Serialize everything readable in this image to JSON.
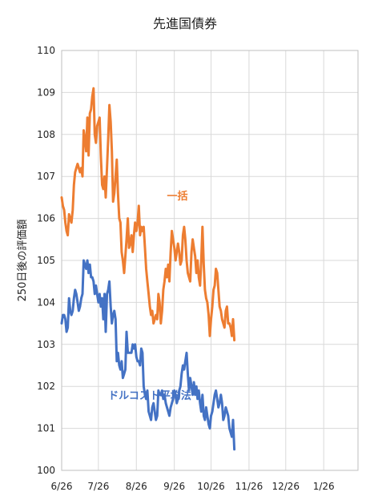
{
  "chart_data": {
    "type": "line",
    "title": "先進国債券",
    "ylabel": "250日後の評価額",
    "ylim": [
      100,
      110
    ],
    "y_ticks": [
      100,
      101,
      102,
      103,
      104,
      105,
      106,
      107,
      108,
      109,
      110
    ],
    "x_tick_labels": [
      "6/26",
      "7/26",
      "8/26",
      "9/26",
      "10/26",
      "11/26",
      "12/26",
      "1/26"
    ],
    "x_tick_days": [
      0,
      30,
      61,
      92,
      122,
      153,
      183,
      214
    ],
    "x_range_days": [
      0,
      242
    ],
    "grid": true,
    "series": [
      {
        "name": "一括",
        "color": "#ED7D31",
        "label_day": 86,
        "label_value": 106.45,
        "points": [
          [
            0,
            106.5
          ],
          [
            1,
            106.3
          ],
          [
            2,
            106.2
          ],
          [
            3,
            105.9
          ],
          [
            4,
            105.7
          ],
          [
            5,
            105.6
          ],
          [
            6,
            106.1
          ],
          [
            7,
            106.0
          ],
          [
            8,
            105.9
          ],
          [
            9,
            106.2
          ],
          [
            10,
            106.8
          ],
          [
            11,
            107.1
          ],
          [
            12,
            107.2
          ],
          [
            13,
            107.3
          ],
          [
            14,
            107.2
          ],
          [
            15,
            107.1
          ],
          [
            16,
            107.2
          ],
          [
            17,
            107.0
          ],
          [
            18,
            108.1
          ],
          [
            19,
            107.9
          ],
          [
            20,
            107.6
          ],
          [
            21,
            108.4
          ],
          [
            22,
            107.5
          ],
          [
            23,
            108.5
          ],
          [
            24,
            108.6
          ],
          [
            25,
            108.9
          ],
          [
            26,
            109.1
          ],
          [
            27,
            108.0
          ],
          [
            28,
            107.8
          ],
          [
            29,
            108.2
          ],
          [
            30,
            108.3
          ],
          [
            31,
            108.4
          ],
          [
            32,
            107.5
          ],
          [
            33,
            106.8
          ],
          [
            34,
            106.7
          ],
          [
            35,
            107.0
          ],
          [
            36,
            106.5
          ],
          [
            37,
            107.2
          ],
          [
            38,
            107.9
          ],
          [
            39,
            108.7
          ],
          [
            40,
            108.3
          ],
          [
            41,
            107.6
          ],
          [
            42,
            106.4
          ],
          [
            43,
            106.6
          ],
          [
            44,
            107.0
          ],
          [
            45,
            107.4
          ],
          [
            46,
            106.6
          ],
          [
            47,
            106.0
          ],
          [
            48,
            105.9
          ],
          [
            49,
            105.2
          ],
          [
            50,
            105.0
          ],
          [
            51,
            104.7
          ],
          [
            52,
            105.1
          ],
          [
            53,
            105.5
          ],
          [
            54,
            106.0
          ],
          [
            55,
            105.3
          ],
          [
            56,
            105.4
          ],
          [
            57,
            105.6
          ],
          [
            58,
            105.2
          ],
          [
            59,
            105.6
          ],
          [
            60,
            105.9
          ],
          [
            61,
            105.7
          ],
          [
            62,
            105.9
          ],
          [
            63,
            106.3
          ],
          [
            64,
            105.6
          ],
          [
            65,
            105.8
          ],
          [
            66,
            105.7
          ],
          [
            67,
            105.8
          ],
          [
            68,
            105.3
          ],
          [
            69,
            104.8
          ],
          [
            70,
            104.5
          ],
          [
            71,
            104.2
          ],
          [
            72,
            103.9
          ],
          [
            73,
            103.7
          ],
          [
            74,
            103.8
          ],
          [
            75,
            103.5
          ],
          [
            76,
            103.6
          ],
          [
            77,
            103.7
          ],
          [
            78,
            103.6
          ],
          [
            79,
            104.2
          ],
          [
            80,
            104.0
          ],
          [
            81,
            103.5
          ],
          [
            82,
            103.8
          ],
          [
            83,
            104.3
          ],
          [
            84,
            104.5
          ],
          [
            85,
            104.8
          ],
          [
            86,
            104.6
          ],
          [
            87,
            104.9
          ],
          [
            88,
            104.5
          ],
          [
            89,
            105.2
          ],
          [
            90,
            105.7
          ],
          [
            91,
            105.5
          ],
          [
            92,
            105.3
          ],
          [
            93,
            105.0
          ],
          [
            94,
            105.2
          ],
          [
            95,
            105.4
          ],
          [
            96,
            105.2
          ],
          [
            97,
            104.9
          ],
          [
            98,
            105.0
          ],
          [
            99,
            105.6
          ],
          [
            100,
            105.8
          ],
          [
            101,
            105.5
          ],
          [
            102,
            105.0
          ],
          [
            103,
            104.7
          ],
          [
            104,
            104.6
          ],
          [
            105,
            104.5
          ],
          [
            106,
            105.2
          ],
          [
            107,
            105.5
          ],
          [
            108,
            105.3
          ],
          [
            109,
            105.1
          ],
          [
            110,
            104.7
          ],
          [
            111,
            105.0
          ],
          [
            112,
            104.6
          ],
          [
            113,
            104.4
          ],
          [
            114,
            105.0
          ],
          [
            115,
            105.8
          ],
          [
            116,
            104.9
          ],
          [
            117,
            104.3
          ],
          [
            118,
            104.1
          ],
          [
            119,
            104.0
          ],
          [
            120,
            103.7
          ],
          [
            121,
            103.2
          ],
          [
            122,
            103.6
          ],
          [
            123,
            103.9
          ],
          [
            124,
            104.3
          ],
          [
            125,
            104.4
          ],
          [
            126,
            104.8
          ],
          [
            127,
            104.7
          ],
          [
            128,
            104.3
          ],
          [
            129,
            103.9
          ],
          [
            130,
            103.8
          ],
          [
            131,
            103.6
          ],
          [
            132,
            103.5
          ],
          [
            133,
            103.4
          ],
          [
            134,
            103.8
          ],
          [
            135,
            103.9
          ],
          [
            136,
            103.5
          ],
          [
            137,
            103.5
          ],
          [
            138,
            103.4
          ],
          [
            139,
            103.2
          ],
          [
            140,
            103.6
          ],
          [
            141,
            103.1
          ]
        ]
      },
      {
        "name": "ドルコスト平均法",
        "color": "#4472C4",
        "label_day": 38,
        "label_value": 101.7,
        "points": [
          [
            0,
            103.5
          ],
          [
            1,
            103.7
          ],
          [
            2,
            103.7
          ],
          [
            3,
            103.6
          ],
          [
            4,
            103.3
          ],
          [
            5,
            103.4
          ],
          [
            6,
            104.1
          ],
          [
            7,
            103.8
          ],
          [
            8,
            103.7
          ],
          [
            9,
            103.8
          ],
          [
            10,
            104.1
          ],
          [
            11,
            104.3
          ],
          [
            12,
            104.2
          ],
          [
            13,
            104.0
          ],
          [
            14,
            103.8
          ],
          [
            15,
            103.9
          ],
          [
            16,
            104.1
          ],
          [
            17,
            104.2
          ],
          [
            18,
            105.0
          ],
          [
            19,
            104.9
          ],
          [
            20,
            104.8
          ],
          [
            21,
            105.0
          ],
          [
            22,
            104.7
          ],
          [
            23,
            104.9
          ],
          [
            24,
            104.6
          ],
          [
            25,
            104.6
          ],
          [
            26,
            104.5
          ],
          [
            27,
            104.2
          ],
          [
            28,
            104.4
          ],
          [
            29,
            104.2
          ],
          [
            30,
            104.0
          ],
          [
            31,
            104.2
          ],
          [
            32,
            103.9
          ],
          [
            33,
            104.1
          ],
          [
            34,
            103.6
          ],
          [
            35,
            104.2
          ],
          [
            36,
            103.3
          ],
          [
            37,
            104.2
          ],
          [
            38,
            104.3
          ],
          [
            39,
            104.5
          ],
          [
            40,
            103.9
          ],
          [
            41,
            103.5
          ],
          [
            42,
            103.7
          ],
          [
            43,
            103.8
          ],
          [
            44,
            103.6
          ],
          [
            45,
            102.6
          ],
          [
            46,
            102.8
          ],
          [
            47,
            102.5
          ],
          [
            48,
            102.4
          ],
          [
            49,
            102.6
          ],
          [
            50,
            102.2
          ],
          [
            51,
            102.3
          ],
          [
            52,
            102.4
          ],
          [
            53,
            103.3
          ],
          [
            54,
            102.8
          ],
          [
            55,
            102.8
          ],
          [
            56,
            102.8
          ],
          [
            57,
            102.8
          ],
          [
            58,
            103.0
          ],
          [
            59,
            102.9
          ],
          [
            60,
            103.0
          ],
          [
            61,
            102.7
          ],
          [
            62,
            102.6
          ],
          [
            63,
            102.6
          ],
          [
            64,
            102.5
          ],
          [
            65,
            102.9
          ],
          [
            66,
            102.8
          ],
          [
            67,
            102.0
          ],
          [
            68,
            101.8
          ],
          [
            69,
            101.7
          ],
          [
            70,
            101.9
          ],
          [
            71,
            101.4
          ],
          [
            72,
            101.3
          ],
          [
            73,
            101.2
          ],
          [
            74,
            101.5
          ],
          [
            75,
            101.6
          ],
          [
            76,
            101.4
          ],
          [
            77,
            101.2
          ],
          [
            78,
            101.3
          ],
          [
            79,
            101.9
          ],
          [
            80,
            101.8
          ],
          [
            81,
            101.8
          ],
          [
            82,
            101.9
          ],
          [
            83,
            101.7
          ],
          [
            84,
            101.8
          ],
          [
            85,
            101.6
          ],
          [
            86,
            101.5
          ],
          [
            87,
            101.4
          ],
          [
            88,
            101.3
          ],
          [
            89,
            101.5
          ],
          [
            90,
            101.6
          ],
          [
            91,
            101.7
          ],
          [
            92,
            101.9
          ],
          [
            93,
            101.8
          ],
          [
            94,
            101.6
          ],
          [
            95,
            101.7
          ],
          [
            96,
            101.9
          ],
          [
            97,
            102.0
          ],
          [
            98,
            102.3
          ],
          [
            99,
            102.5
          ],
          [
            100,
            102.4
          ],
          [
            101,
            102.6
          ],
          [
            102,
            102.8
          ],
          [
            103,
            102.3
          ],
          [
            104,
            101.9
          ],
          [
            105,
            102.2
          ],
          [
            106,
            102.0
          ],
          [
            107,
            101.8
          ],
          [
            108,
            102.1
          ],
          [
            109,
            101.8
          ],
          [
            110,
            102.0
          ],
          [
            111,
            101.7
          ],
          [
            112,
            101.9
          ],
          [
            113,
            101.6
          ],
          [
            114,
            101.4
          ],
          [
            115,
            101.8
          ],
          [
            116,
            101.3
          ],
          [
            117,
            101.2
          ],
          [
            118,
            101.5
          ],
          [
            119,
            101.3
          ],
          [
            120,
            101.1
          ],
          [
            121,
            101.0
          ],
          [
            122,
            101.3
          ],
          [
            123,
            101.4
          ],
          [
            124,
            101.6
          ],
          [
            125,
            101.8
          ],
          [
            126,
            101.9
          ],
          [
            127,
            101.7
          ],
          [
            128,
            101.5
          ],
          [
            129,
            101.6
          ],
          [
            130,
            101.8
          ],
          [
            131,
            101.6
          ],
          [
            132,
            101.2
          ],
          [
            133,
            101.3
          ],
          [
            134,
            101.5
          ],
          [
            135,
            101.4
          ],
          [
            136,
            101.3
          ],
          [
            137,
            101.0
          ],
          [
            138,
            100.9
          ],
          [
            139,
            100.8
          ],
          [
            140,
            101.2
          ],
          [
            141,
            100.5
          ]
        ]
      }
    ]
  }
}
